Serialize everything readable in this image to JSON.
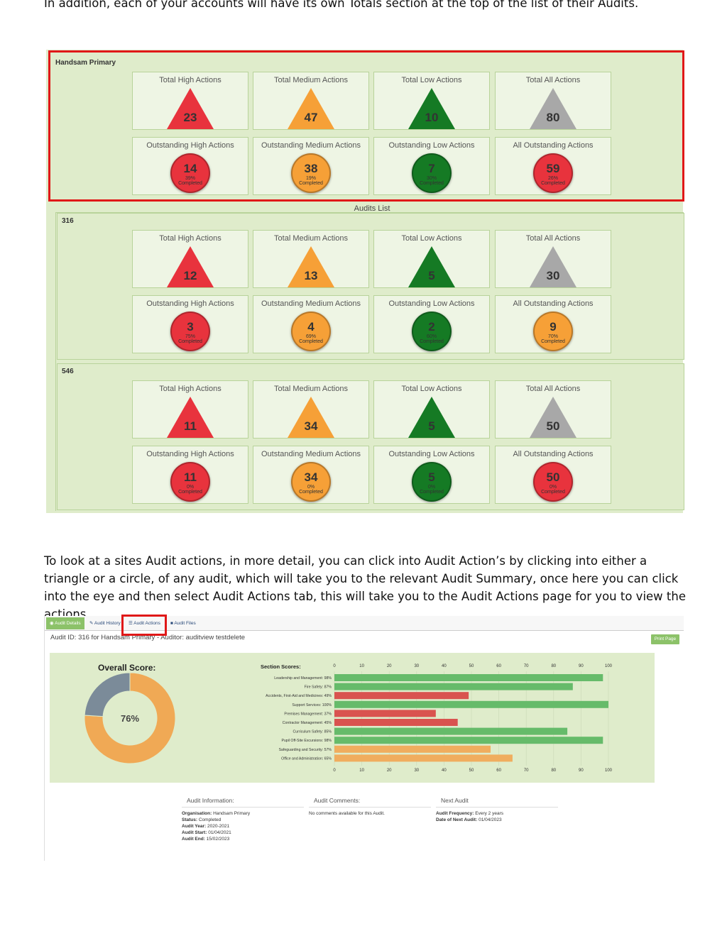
{
  "intro_text": "In addition, each of your accounts will have its own Totals section at the top of the list of their Audits.",
  "account": {
    "name": "Handsam Primary",
    "totals": [
      {
        "title": "Total High Actions",
        "value": "23",
        "shape": "triangle",
        "color": "#e8333d"
      },
      {
        "title": "Total Medium Actions",
        "value": "47",
        "shape": "triangle",
        "color": "#f6a037"
      },
      {
        "title": "Total Low Actions",
        "value": "10",
        "shape": "triangle",
        "color": "#157a24"
      },
      {
        "title": "Total All Actions",
        "value": "80",
        "shape": "triangle",
        "color": "#a8a8a8"
      }
    ],
    "outstanding": [
      {
        "title": "Outstanding High Actions",
        "value": "14",
        "pct": "39%",
        "completed": "Completed",
        "color": "#e8333d"
      },
      {
        "title": "Outstanding Medium Actions",
        "value": "38",
        "pct": "19%",
        "completed": "Completed",
        "color": "#f6a037"
      },
      {
        "title": "Outstanding Low Actions",
        "value": "7",
        "pct": "30%",
        "completed": "Completed",
        "color": "#157a24"
      },
      {
        "title": "All Outstanding Actions",
        "value": "59",
        "pct": "26%",
        "completed": "Completed",
        "color": "#e8333d"
      }
    ]
  },
  "audits_list_label": "Audits List",
  "audits": [
    {
      "id": "316",
      "totals": [
        {
          "title": "Total High Actions",
          "value": "12",
          "color": "#e8333d"
        },
        {
          "title": "Total Medium Actions",
          "value": "13",
          "color": "#f6a037"
        },
        {
          "title": "Total Low Actions",
          "value": "5",
          "color": "#157a24"
        },
        {
          "title": "Total All Actions",
          "value": "30",
          "color": "#a8a8a8"
        }
      ],
      "outstanding": [
        {
          "title": "Outstanding High Actions",
          "value": "3",
          "pct": "75%",
          "completed": "Completed",
          "color": "#e8333d"
        },
        {
          "title": "Outstanding Medium Actions",
          "value": "4",
          "pct": "69%",
          "completed": "Completed",
          "color": "#f6a037"
        },
        {
          "title": "Outstanding Low Actions",
          "value": "2",
          "pct": "60%",
          "completed": "Completed",
          "color": "#157a24"
        },
        {
          "title": "All Outstanding Actions",
          "value": "9",
          "pct": "70%",
          "completed": "Completed",
          "color": "#f6a037"
        }
      ]
    },
    {
      "id": "546",
      "totals": [
        {
          "title": "Total High Actions",
          "value": "11",
          "color": "#e8333d"
        },
        {
          "title": "Total Medium Actions",
          "value": "34",
          "color": "#f6a037"
        },
        {
          "title": "Total Low Actions",
          "value": "5",
          "color": "#157a24"
        },
        {
          "title": "Total All Actions",
          "value": "50",
          "color": "#a8a8a8"
        }
      ],
      "outstanding": [
        {
          "title": "Outstanding High Actions",
          "value": "11",
          "pct": "0%",
          "completed": "Completed",
          "color": "#e8333d"
        },
        {
          "title": "Outstanding Medium Actions",
          "value": "34",
          "pct": "0%",
          "completed": "Completed",
          "color": "#f6a037"
        },
        {
          "title": "Outstanding Low Actions",
          "value": "5",
          "pct": "0%",
          "completed": "Completed",
          "color": "#157a24"
        },
        {
          "title": "All Outstanding Actions",
          "value": "50",
          "pct": "0%",
          "completed": "Completed",
          "color": "#e8333d"
        }
      ]
    }
  ],
  "second_text": "To look at a sites Audit actions, in more detail, you can click into Audit Action’s by clicking into either a triangle or a circle, of any audit, which will take you to the relevant Audit Summary, once here you can click into the eye and then select Audit Actions tab, this will take you to the Audit Actions page for you to view the actions.",
  "audit_summary": {
    "tabs": [
      {
        "label": "Audit Details",
        "icon": "eye-icon",
        "active": true
      },
      {
        "label": "Audit History",
        "icon": "pencil-icon",
        "active": false
      },
      {
        "label": "Audit Actions",
        "icon": "list-icon",
        "active": false
      },
      {
        "label": "Audit Files",
        "icon": "file-icon",
        "active": false
      }
    ],
    "header": "Audit ID: 316 for Handsam Primary - Auditor: auditview testdelete",
    "print_label": "Print Page",
    "overall_title": "Overall Score:",
    "overall_value": "76%",
    "section_title": "Section Scores:",
    "info_titles": {
      "info": "Audit Information:",
      "comments": "Audit Comments:",
      "next": "Next Audit"
    },
    "info_rows": [
      {
        "k": "Organisation:",
        "v": "Handsam Primary"
      },
      {
        "k": "Status:",
        "v": "Completed"
      },
      {
        "k": "Audit Year:",
        "v": "2020-2021"
      },
      {
        "k": "Audit Start:",
        "v": "01/04/2021"
      },
      {
        "k": "Audit End:",
        "v": "15/02/2023"
      }
    ],
    "comments_text": "No comments available for this Audit.",
    "next_rows": [
      {
        "k": "Audit Frequency:",
        "v": "Every 2 years"
      },
      {
        "k": "Date of Next Audit:",
        "v": "01/04/2023"
      }
    ]
  },
  "chart_data": [
    {
      "type": "pie",
      "title": "Overall Score:",
      "center_label": "76%",
      "values": [
        76,
        24
      ],
      "colors": [
        "#f0a955",
        "#7b8b99"
      ]
    },
    {
      "type": "bar",
      "orientation": "horizontal",
      "title": "Section Scores:",
      "xlim": [
        0,
        100
      ],
      "xticks": [
        0,
        10,
        20,
        30,
        40,
        50,
        60,
        70,
        80,
        90,
        100
      ],
      "categories": [
        "Leadership and Management: 98%",
        "Fire Safety: 87%",
        "Accidents, First-Aid and Medicines: 49%",
        "Support Services: 100%",
        "Premises Management: 37%",
        "Contractor Management: 45%",
        "Curriculum Safety: 85%",
        "Pupil Off-Site Excursions: 98%",
        "Safeguarding and Security: 57%",
        "Office and Administration: 65%"
      ],
      "values": [
        98,
        87,
        49,
        100,
        37,
        45,
        85,
        98,
        57,
        65
      ],
      "colors": [
        "#66bb6a",
        "#66bb6a",
        "#d9534f",
        "#66bb6a",
        "#d9534f",
        "#d9534f",
        "#66bb6a",
        "#66bb6a",
        "#f0ad5e",
        "#f0ad5e"
      ],
      "grid": true
    }
  ]
}
